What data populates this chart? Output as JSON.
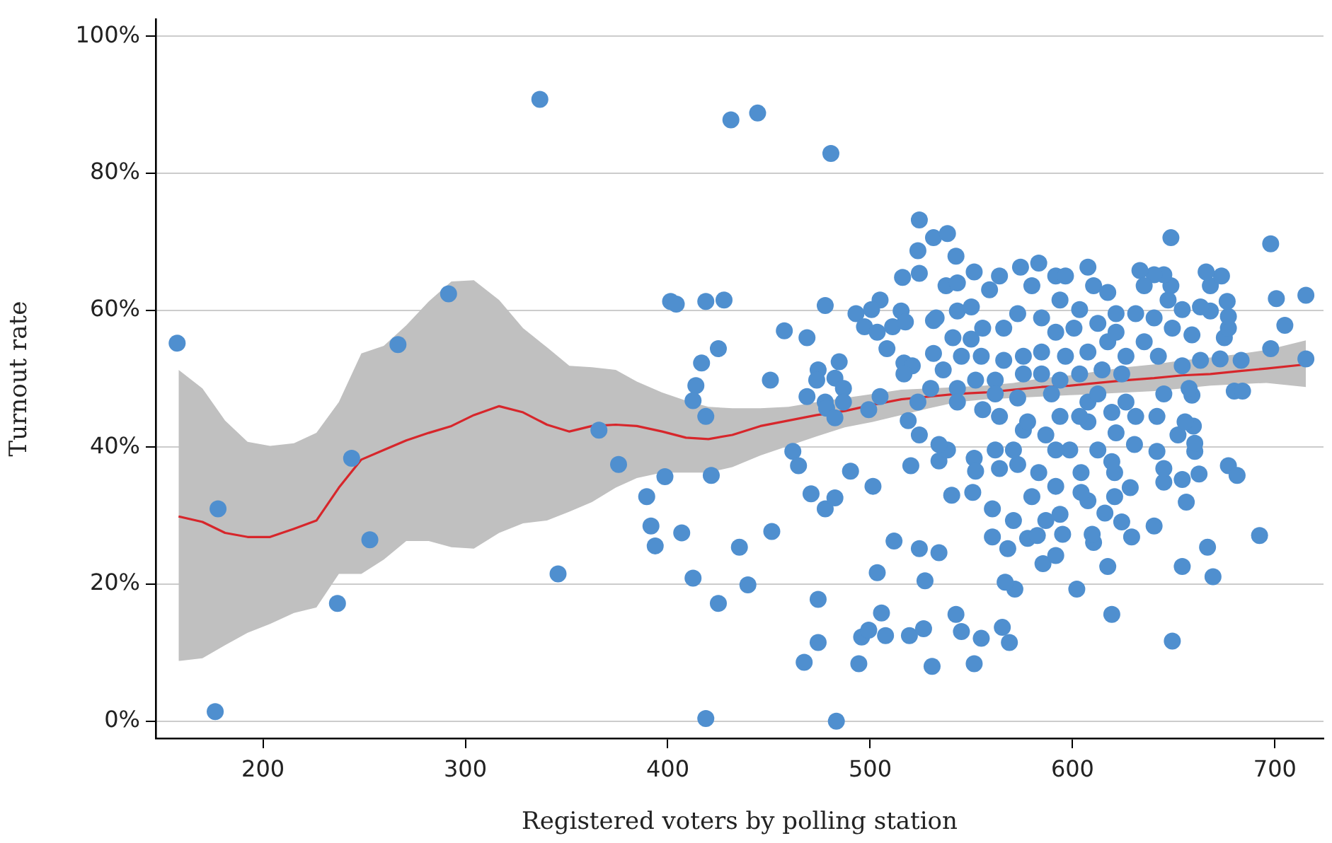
{
  "chart_data": {
    "type": "scatter",
    "xlabel": "Registered voters by polling station",
    "ylabel": "Turnout rate",
    "xlim": [
      147,
      724
    ],
    "ylim": [
      -2.5,
      102.5
    ],
    "xticks": [
      200,
      300,
      400,
      500,
      600,
      700
    ],
    "yticks": [
      {
        "value": 0,
        "label": "0%"
      },
      {
        "value": 20,
        "label": "20%"
      },
      {
        "value": 40,
        "label": "40%"
      },
      {
        "value": 60,
        "label": "60%"
      },
      {
        "value": 80,
        "label": "80%"
      },
      {
        "value": 100,
        "label": "100%"
      }
    ],
    "grid": "y",
    "legend": false,
    "series": [
      {
        "type": "line",
        "color": "#d7262b",
        "marker": "none",
        "line_style": "solid",
        "x": [
          158.3,
          170.1,
          181.3,
          192.4,
          203.5,
          215.3,
          226.4,
          237.5,
          248.6,
          259.7,
          270.8,
          281.9,
          293.1,
          304.2,
          316.7,
          328.5,
          340.3,
          351.4,
          362.5,
          374.3,
          384.7,
          397.2,
          409.0,
          420.1,
          431.9,
          445.8,
          459.7,
          473.6,
          487.5,
          501.4,
          515.3,
          529.2,
          543.1,
          556.9,
          570.8,
          584.7,
          598.6,
          612.5,
          626.4,
          640.3,
          654.2,
          668.1,
          681.9,
          695.8,
          715.3
        ],
        "values": [
          29.9,
          29.1,
          27.5,
          26.9,
          26.9,
          28.1,
          29.3,
          34.1,
          38.2,
          39.6,
          41.0,
          42.1,
          43.1,
          44.7,
          46.0,
          45.1,
          43.3,
          42.3,
          43.1,
          43.3,
          43.1,
          42.3,
          41.4,
          41.2,
          41.8,
          43.1,
          43.9,
          44.7,
          45.3,
          46.2,
          47.0,
          47.4,
          47.8,
          48.0,
          48.4,
          48.8,
          49.0,
          49.4,
          49.8,
          50.1,
          50.5,
          50.7,
          51.1,
          51.5,
          52.1
        ],
        "upper": [
          51.3,
          48.6,
          43.9,
          40.8,
          40.2,
          40.6,
          42.1,
          46.6,
          53.7,
          54.8,
          57.8,
          61.3,
          64.2,
          64.4,
          61.5,
          57.4,
          54.6,
          51.9,
          51.7,
          51.3,
          49.6,
          48.0,
          46.8,
          45.9,
          45.7,
          45.7,
          45.9,
          46.6,
          47.2,
          47.8,
          48.4,
          48.6,
          48.8,
          49.0,
          49.4,
          50.1,
          50.5,
          51.1,
          51.7,
          52.1,
          52.7,
          53.1,
          53.6,
          54.2,
          55.6
        ],
        "lower": [
          8.8,
          9.2,
          11.1,
          12.9,
          14.2,
          15.8,
          16.6,
          21.5,
          21.5,
          23.6,
          26.3,
          26.3,
          25.4,
          25.2,
          27.5,
          28.9,
          29.3,
          30.6,
          32.0,
          34.1,
          35.5,
          36.3,
          36.3,
          36.3,
          37.1,
          38.8,
          40.2,
          41.6,
          42.9,
          43.7,
          44.7,
          45.7,
          46.6,
          47.0,
          47.2,
          47.4,
          47.6,
          47.8,
          48.0,
          48.2,
          48.6,
          49.0,
          49.2,
          49.4,
          48.8
        ]
      },
      {
        "color": "#4f8fcf",
        "marker": "circle",
        "x": [
          157.6,
          177.8,
          176.4,
          236.8,
          243.8,
          252.8,
          266.7,
          291.7,
          345.8,
          366,
          375.7,
          336.8,
          431.2,
          444.4,
          480.6,
          401.4,
          404.2,
          418.8,
          427.8,
          457.6,
          468.8,
          477.8,
          416.7,
          425,
          413.9,
          412.5,
          418.8,
          450.7,
          398.6,
          421.5,
          389.6,
          391.7,
          393.8,
          406.9,
          412.5,
          425,
          435.4,
          439.6,
          451.4,
          461.8,
          464.6,
          470.8,
          477.8,
          482.6,
          490.3,
          501.4,
          474.3,
          474.3,
          467.4,
          418.8,
          483.3,
          494.4,
          495.8,
          499.3,
          507.6,
          505.6,
          503.5,
          511.8,
          524.3,
          527.1,
          519.4,
          526.4,
          530.6,
          474.3,
          473.6,
          484.7,
          482.6,
          486.8,
          468.8,
          477.8,
          478.5,
          486.8,
          482.6,
          504.9,
          499.3,
          518.8,
          524.3,
          520.1,
          493,
          497.2,
          504.9,
          500.7,
          503.5,
          511.1,
          515.3,
          517.4,
          508.3,
          516,
          524.3,
          523.6,
          524.3,
          516.7,
          520.8,
          516.7,
          529.9,
          523.6,
          531.3,
          531.3,
          531.3,
          534,
          534,
          648.6,
          697.9,
          715.3,
          700.7,
          704.9,
          697.9,
          715.3,
          683.3,
          679.9,
          684,
          677,
          681.3,
          692.4,
          669.4,
          666.7,
          654.2,
          649.3,
          619.4,
          602.1,
          617.4,
          571.5,
          566.7,
          568.8,
          565.3,
          554.9,
          545.1,
          542.4,
          551.4,
          540.3,
          550.7,
          538.2,
          534,
          551.4,
          560.4,
          568,
          577.8,
          582.6,
          585.4,
          591.7,
          595.1,
          610.4,
          609.7,
          629.2,
          640.3,
          624.3,
          616,
          628.5,
          620.8,
          607.6,
          604.2,
          586.8,
          593.8,
          570.8,
          560.4,
          579.9,
          591.7,
          552.1,
          563.9,
          572.9,
          583.3,
          604.2,
          620.8,
          645.1,
          654.2,
          656.2,
          662.5,
          645.1,
          641.7,
          660.4,
          660.4,
          652.1,
          659.7,
          655.6,
          641.7,
          630.6,
          621.5,
          612.5,
          598.6,
          591.7,
          586.8,
          575.7,
          563.9,
          561.8,
          570.8,
          577.8,
          593.8,
          607.6,
          607.6,
          626.4,
          631.2,
          645.1,
          659,
          657.6,
          654.2,
          663.2,
          672.9,
          675,
          677,
          677,
          676.4,
          668.1,
          663.2,
          668.1,
          673.6,
          666,
          659,
          649.3,
          654.2,
          647.2,
          648.6,
          645.1,
          640.3,
          633.3,
          635.4,
          631.2,
          640.3,
          635.4,
          642.4,
          626.4,
          617.4,
          607.6,
          596.5,
          584.7,
          575.7,
          566,
          554.9,
          545.1,
          536.1,
          540.9,
          549.9,
          555.6,
          543.1,
          550,
          532.6,
          537.5,
          543.1,
          551.4,
          559,
          563.9,
          574.3,
          583.3,
          591.7,
          596.5,
          607.6,
          610.4,
          617.4,
          579.9,
          593.8,
          603.5,
          584.7,
          572.9,
          566,
          591.7,
          600.7,
          612.5,
          621.5,
          621.5,
          584.7,
          575.7,
          593.8,
          603.5,
          614.6,
          624.3,
          561.8,
          552.1,
          543.1,
          561.8,
          572.9,
          589.6,
          612.5,
          619.4,
          603.5,
          555.6,
          543.1,
          619.4,
          538.2,
          542.4
        ],
        "values": [
          55.2,
          31.0,
          1.4,
          17.2,
          38.4,
          26.5,
          55.0,
          62.4,
          21.5,
          42.5,
          37.5,
          90.8,
          87.8,
          88.8,
          82.9,
          61.3,
          60.9,
          61.3,
          61.5,
          57.0,
          56.0,
          60.7,
          52.3,
          54.4,
          49.0,
          46.8,
          44.5,
          49.8,
          35.7,
          35.9,
          32.8,
          28.5,
          25.6,
          27.5,
          20.9,
          17.2,
          25.4,
          19.9,
          27.7,
          39.4,
          37.3,
          33.2,
          31.0,
          32.6,
          36.5,
          34.3,
          17.8,
          11.5,
          8.6,
          0.4,
          0.0,
          8.4,
          12.3,
          13.3,
          12.5,
          15.8,
          21.7,
          26.3,
          25.2,
          20.5,
          12.5,
          13.5,
          8.0,
          51.3,
          49.8,
          52.5,
          50.1,
          48.6,
          47.4,
          46.6,
          45.7,
          46.6,
          44.3,
          47.4,
          45.5,
          43.9,
          41.8,
          37.3,
          59.5,
          57.6,
          61.5,
          60.1,
          56.8,
          57.6,
          59.9,
          58.3,
          54.4,
          64.8,
          65.4,
          68.7,
          73.2,
          52.3,
          51.9,
          50.7,
          48.6,
          46.6,
          53.7,
          58.5,
          70.6,
          38.0,
          24.6,
          70.6,
          69.7,
          62.2,
          61.7,
          57.8,
          54.4,
          52.9,
          52.7,
          48.2,
          48.2,
          37.3,
          35.9,
          27.1,
          21.1,
          25.4,
          22.6,
          11.7,
          15.6,
          19.3,
          22.6,
          19.3,
          20.3,
          11.5,
          13.7,
          12.1,
          13.1,
          15.6,
          8.4,
          33.0,
          33.4,
          39.6,
          40.4,
          38.4,
          26.9,
          25.2,
          26.7,
          27.1,
          23.0,
          24.2,
          27.3,
          26.1,
          27.3,
          26.9,
          28.5,
          29.1,
          30.4,
          34.1,
          32.8,
          32.2,
          33.4,
          29.3,
          30.2,
          29.3,
          31.0,
          32.8,
          34.3,
          36.5,
          36.9,
          37.5,
          36.3,
          36.3,
          36.3,
          34.9,
          35.3,
          32.0,
          36.1,
          36.9,
          39.4,
          39.4,
          40.6,
          41.8,
          43.1,
          43.7,
          44.5,
          40.4,
          42.1,
          39.6,
          39.6,
          39.6,
          41.8,
          42.5,
          44.5,
          39.6,
          39.6,
          43.7,
          44.5,
          43.7,
          46.6,
          46.6,
          44.5,
          47.8,
          47.6,
          48.6,
          51.9,
          52.7,
          52.9,
          56.0,
          57.4,
          59.1,
          61.3,
          59.9,
          60.5,
          63.6,
          65.0,
          65.6,
          56.4,
          57.4,
          60.1,
          61.5,
          63.6,
          65.2,
          65.2,
          65.8,
          63.6,
          59.5,
          58.9,
          55.4,
          53.3,
          53.3,
          55.4,
          53.9,
          53.3,
          53.9,
          53.3,
          52.7,
          53.3,
          53.3,
          51.3,
          56.0,
          55.8,
          57.4,
          59.9,
          60.5,
          58.9,
          63.6,
          64.0,
          65.6,
          63.0,
          65.0,
          66.3,
          66.9,
          65.0,
          65.0,
          66.3,
          63.6,
          62.6,
          63.6,
          61.5,
          60.1,
          58.9,
          59.5,
          57.4,
          56.8,
          57.4,
          58.1,
          59.5,
          56.8,
          50.7,
          50.7,
          49.8,
          50.7,
          51.3,
          50.7,
          49.8,
          49.8,
          48.6,
          47.8,
          47.2,
          47.8,
          47.8,
          45.1,
          44.5,
          45.5,
          46.6,
          37.9,
          71.2,
          67.9
        ]
      }
    ]
  }
}
